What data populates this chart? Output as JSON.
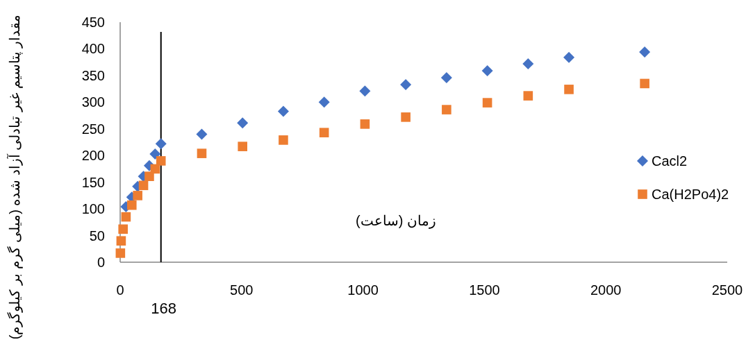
{
  "chart_data": {
    "type": "scatter",
    "ylabel": "مقدار پتاسیم غیر تبادلی آزاد شده (میلی گرم بر کیلوگرم)",
    "xlabel": "زمان (ساعت)",
    "xlim": [
      0,
      2500
    ],
    "xticks": [
      0,
      500,
      1000,
      1500,
      2000,
      2500
    ],
    "ylim": [
      0,
      450
    ],
    "yticks": [
      0,
      50,
      100,
      150,
      200,
      250,
      300,
      350,
      400,
      450
    ],
    "grid": false,
    "legend": "right",
    "ref_lines": [
      {
        "axis": "x",
        "value": 168,
        "label": "168",
        "color": "#000000"
      }
    ],
    "series": [
      {
        "name": "Cacl2",
        "color": "#4472c4",
        "marker": "diamond",
        "x": [
          24,
          48,
          72,
          96,
          120,
          144,
          168,
          336,
          504,
          672,
          840,
          1008,
          1176,
          1344,
          1512,
          1680,
          1848,
          2160
        ],
        "values": [
          104,
          122,
          142,
          161,
          181,
          203,
          222,
          240,
          261,
          283,
          300,
          321,
          333,
          346,
          359,
          372,
          384,
          394
        ]
      },
      {
        "name": "Ca(H2Po4)2",
        "color": "#ed7d31",
        "marker": "square",
        "x": [
          1,
          4,
          12,
          24,
          48,
          72,
          96,
          120,
          144,
          168,
          336,
          504,
          672,
          840,
          1008,
          1176,
          1344,
          1512,
          1680,
          1848,
          2160
        ],
        "values": [
          17,
          40,
          62,
          85,
          107,
          125,
          144,
          161,
          175,
          190,
          204,
          217,
          229,
          243,
          259,
          272,
          286,
          299,
          312,
          324,
          335
        ]
      }
    ]
  }
}
